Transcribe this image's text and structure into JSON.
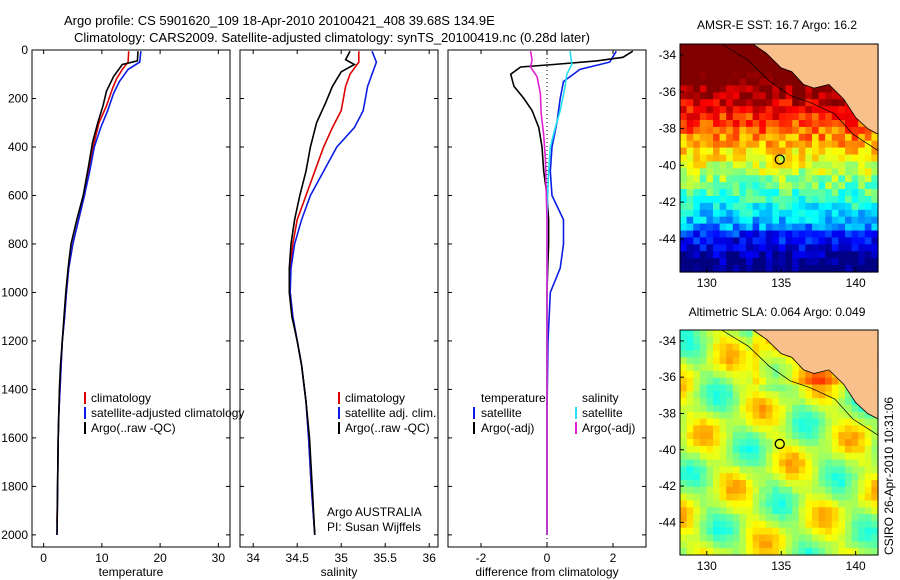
{
  "header": {
    "line1": "Argo profile: CS 5901620_109 18-Apr-2010 20100421_408 39.68S 134.9E",
    "line2": "Climatology: CARS2009. Satellite-adjusted climatology: synTS_20100419.nc (0.28d later)"
  },
  "colors": {
    "climatology": "#dd0000",
    "satellite": "#0a1ee6",
    "argo": "#000000",
    "salinity_satellite": "#22e0f0",
    "salinity_argo": "#e020d0"
  },
  "chart_data": [
    {
      "id": "temperature",
      "type": "line",
      "xlabel": "temperature",
      "ylabel": "",
      "xlim": [
        -2,
        32
      ],
      "ylim": [
        2050,
        0
      ],
      "xticks": [
        "0",
        "10",
        "20",
        "30"
      ],
      "yticks": [
        "0",
        "200",
        "400",
        "600",
        "800",
        "1000",
        "1200",
        "1400",
        "1600",
        "1800",
        "2000"
      ],
      "legend": [
        "climatology",
        "satellite-adjusted climatology",
        "Argo(..raw -QC)"
      ],
      "series": [
        {
          "name": "climatology",
          "points": [
            [
              14.6,
              5
            ],
            [
              14.5,
              50
            ],
            [
              13.5,
              80
            ],
            [
              12.5,
              120
            ],
            [
              11.8,
              160
            ],
            [
              10.8,
              230
            ],
            [
              9.5,
              300
            ],
            [
              8.5,
              400
            ],
            [
              7.8,
              500
            ],
            [
              7,
              600
            ],
            [
              6,
              700
            ],
            [
              5,
              800
            ],
            [
              4.3,
              900
            ],
            [
              3.9,
              1000
            ],
            [
              3.6,
              1100
            ],
            [
              3.2,
              1200
            ],
            [
              3,
              1300
            ],
            [
              2.8,
              1400
            ],
            [
              2.6,
              1500
            ],
            [
              2.5,
              1600
            ],
            [
              2.4,
              1800
            ],
            [
              2.3,
              1950
            ]
          ]
        },
        {
          "name": "satellite-adjusted climatology",
          "points": [
            [
              16.7,
              5
            ],
            [
              16.5,
              50
            ],
            [
              14.5,
              80
            ],
            [
              13,
              130
            ],
            [
              12,
              180
            ],
            [
              11,
              250
            ],
            [
              9.8,
              320
            ],
            [
              8.7,
              400
            ],
            [
              7.9,
              500
            ],
            [
              7,
              600
            ],
            [
              6,
              700
            ],
            [
              5,
              800
            ],
            [
              4.3,
              900
            ],
            [
              3.9,
              1000
            ],
            [
              3.6,
              1100
            ],
            [
              3.2,
              1200
            ],
            [
              3,
              1300
            ],
            [
              2.8,
              1400
            ],
            [
              2.6,
              1500
            ],
            [
              2.5,
              1600
            ],
            [
              2.4,
              1800
            ],
            [
              2.3,
              2000
            ]
          ]
        },
        {
          "name": "Argo(..raw -QC)",
          "points": [
            [
              16.2,
              5
            ],
            [
              16.1,
              45
            ],
            [
              13.5,
              60
            ],
            [
              12,
              110
            ],
            [
              10.8,
              170
            ],
            [
              10.2,
              230
            ],
            [
              9.3,
              300
            ],
            [
              8.4,
              380
            ],
            [
              7.7,
              480
            ],
            [
              6.8,
              600
            ],
            [
              5.7,
              700
            ],
            [
              4.7,
              800
            ],
            [
              4.2,
              900
            ],
            [
              3.8,
              1000
            ],
            [
              3.5,
              1100
            ],
            [
              3.2,
              1200
            ],
            [
              2.9,
              1300
            ],
            [
              2.7,
              1400
            ],
            [
              2.6,
              1500
            ],
            [
              2.5,
              1600
            ],
            [
              2.4,
              1800
            ],
            [
              2.3,
              2000
            ]
          ]
        }
      ]
    },
    {
      "id": "salinity",
      "type": "line",
      "xlabel": "salinity",
      "xlim": [
        33.85,
        36.1
      ],
      "ylim": [
        2050,
        0
      ],
      "xticks": [
        "34",
        "34.5",
        "35",
        "35.5",
        "36"
      ],
      "legend": [
        "climatology",
        "satellite adj. clim.",
        "Argo(..raw -QC)"
      ],
      "annotation": [
        "Argo AUSTRALIA",
        "PI: Susan Wijffels"
      ],
      "series": [
        {
          "name": "climatology",
          "points": [
            [
              35.2,
              5
            ],
            [
              35.2,
              50
            ],
            [
              35.1,
              100
            ],
            [
              35.05,
              150
            ],
            [
              35,
              250
            ],
            [
              34.9,
              320
            ],
            [
              34.8,
              400
            ],
            [
              34.7,
              500
            ],
            [
              34.6,
              600
            ],
            [
              34.5,
              700
            ],
            [
              34.45,
              800
            ],
            [
              34.42,
              900
            ],
            [
              34.42,
              1000
            ],
            [
              34.45,
              1100
            ],
            [
              34.5,
              1200
            ],
            [
              34.55,
              1300
            ],
            [
              34.6,
              1450
            ],
            [
              34.63,
              1600
            ],
            [
              34.66,
              1800
            ],
            [
              34.7,
              2000
            ]
          ]
        },
        {
          "name": "satellite adj. clim.",
          "points": [
            [
              35.35,
              5
            ],
            [
              35.4,
              50
            ],
            [
              35.35,
              100
            ],
            [
              35.3,
              150
            ],
            [
              35.25,
              250
            ],
            [
              35.15,
              320
            ],
            [
              34.95,
              400
            ],
            [
              34.8,
              500
            ],
            [
              34.65,
              600
            ],
            [
              34.55,
              700
            ],
            [
              34.47,
              800
            ],
            [
              34.43,
              900
            ],
            [
              34.42,
              1000
            ],
            [
              34.45,
              1100
            ],
            [
              34.5,
              1200
            ],
            [
              34.55,
              1300
            ],
            [
              34.6,
              1450
            ],
            [
              34.63,
              1600
            ],
            [
              34.66,
              1800
            ],
            [
              34.7,
              2000
            ]
          ]
        },
        {
          "name": "Argo(..raw -QC)",
          "points": [
            [
              35.1,
              5
            ],
            [
              35.05,
              40
            ],
            [
              35.15,
              60
            ],
            [
              35.0,
              90
            ],
            [
              34.9,
              150
            ],
            [
              34.82,
              220
            ],
            [
              34.72,
              300
            ],
            [
              34.65,
              400
            ],
            [
              34.6,
              500
            ],
            [
              34.53,
              600
            ],
            [
              34.47,
              700
            ],
            [
              34.43,
              800
            ],
            [
              34.41,
              900
            ],
            [
              34.41,
              1000
            ],
            [
              34.44,
              1100
            ],
            [
              34.5,
              1200
            ],
            [
              34.55,
              1300
            ],
            [
              34.6,
              1450
            ],
            [
              34.64,
              1600
            ],
            [
              34.67,
              1800
            ],
            [
              34.7,
              2000
            ]
          ]
        }
      ]
    },
    {
      "id": "difference",
      "type": "line",
      "xlabel": "difference from climatology",
      "xlim": [
        -3,
        3
      ],
      "ylim": [
        2050,
        0
      ],
      "xticks": [
        "-2",
        "0",
        "2"
      ],
      "legend_left": [
        "temperature",
        "satellite",
        "Argo(-adj)"
      ],
      "legend_right": [
        "salinity",
        "satellite",
        "Argo(-adj)"
      ],
      "series": [
        {
          "name": "temperature satellite",
          "points": [
            [
              2.1,
              5
            ],
            [
              1.9,
              50
            ],
            [
              1,
              80
            ],
            [
              0.5,
              130
            ],
            [
              0.4,
              200
            ],
            [
              0.3,
              300
            ],
            [
              0.15,
              400
            ],
            [
              0.1,
              500
            ],
            [
              0.15,
              600
            ],
            [
              0.5,
              700
            ],
            [
              0.5,
              800
            ],
            [
              0.4,
              900
            ],
            [
              0.1,
              1000
            ],
            [
              0.03,
              1200
            ],
            [
              0,
              1500
            ],
            [
              0,
              2000
            ]
          ]
        },
        {
          "name": "temperature Argo(-adj)",
          "points": [
            [
              2.6,
              5
            ],
            [
              2.3,
              30
            ],
            [
              1.5,
              45
            ],
            [
              0.2,
              60
            ],
            [
              -0.8,
              70
            ],
            [
              -1.1,
              100
            ],
            [
              -1,
              150
            ],
            [
              -0.7,
              200
            ],
            [
              -0.45,
              250
            ],
            [
              -0.25,
              320
            ],
            [
              -0.15,
              400
            ],
            [
              -0.1,
              500
            ],
            [
              0,
              600
            ],
            [
              0.05,
              700
            ],
            [
              0.05,
              800
            ],
            [
              0.02,
              900
            ],
            [
              0,
              1000
            ],
            [
              0,
              1200
            ],
            [
              0,
              1500
            ],
            [
              0,
              2000
            ]
          ]
        },
        {
          "name": "salinity satellite",
          "points": [
            [
              0.7,
              5
            ],
            [
              0.75,
              60
            ],
            [
              0.6,
              100
            ],
            [
              0.55,
              150
            ],
            [
              0.4,
              250
            ],
            [
              0.25,
              320
            ],
            [
              0.1,
              400
            ],
            [
              0.05,
              500
            ],
            [
              0.02,
              600
            ],
            [
              0,
              700
            ],
            [
              0,
              800
            ],
            [
              0,
              1000
            ],
            [
              0,
              1500
            ],
            [
              0,
              2000
            ]
          ]
        },
        {
          "name": "salinity Argo(-adj)",
          "points": [
            [
              -0.5,
              5
            ],
            [
              -0.45,
              40
            ],
            [
              -0.5,
              70
            ],
            [
              -0.3,
              110
            ],
            [
              -0.2,
              180
            ],
            [
              -0.18,
              260
            ],
            [
              -0.1,
              350
            ],
            [
              -0.05,
              450
            ],
            [
              -0.03,
              550
            ],
            [
              0,
              700
            ],
            [
              0,
              1000
            ],
            [
              0,
              2000
            ]
          ]
        }
      ]
    }
  ],
  "maps": [
    {
      "id": "sst",
      "title": "AMSR-E SST: 16.7 Argo: 16.2",
      "xticks": [
        "130",
        "135",
        "140"
      ],
      "yticks": [
        "-34",
        "-36",
        "-38",
        "-40",
        "-42",
        "-44"
      ],
      "lon_range": [
        128.2,
        141.5
      ],
      "lat_range": [
        -45.8,
        -33.4
      ],
      "marker": {
        "lon": 134.9,
        "lat": -39.68
      },
      "colormap": "jet"
    },
    {
      "id": "sla",
      "title": "Altimetric SLA: 0.064 Argo: 0.049",
      "xticks": [
        "130",
        "135",
        "140"
      ],
      "yticks": [
        "-34",
        "-36",
        "-38",
        "-40",
        "-42",
        "-44"
      ],
      "lon_range": [
        128.2,
        141.5
      ],
      "lat_range": [
        -45.8,
        -33.4
      ],
      "marker": {
        "lon": 134.9,
        "lat": -39.68
      },
      "colormap": "jet"
    }
  ],
  "footer": {
    "side_label": "CSIRO 26-Apr-2010 10:31:06"
  }
}
